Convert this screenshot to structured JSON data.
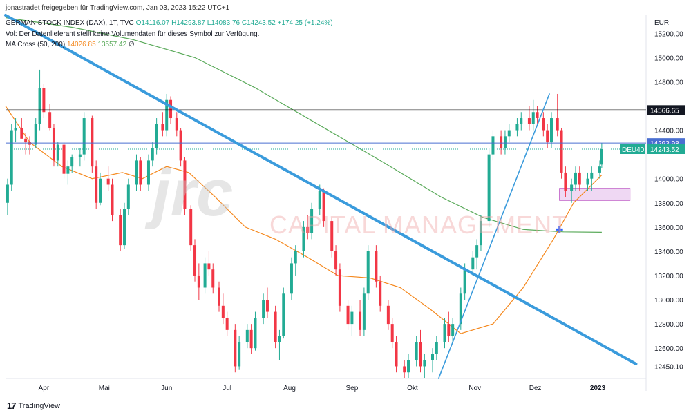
{
  "header": {
    "attribution": "jonastradet freigegeben für TradingView.com, Jan 03, 2023 15:22 UTC+1",
    "symbol": "GERMAN STOCK INDEX (DAX), 1T, TVC",
    "ohlc": "O14116.07  H14293.87  L14083.76  C14243.52  +174.25 (+1.24%)",
    "volume_note": "Vol: Der Datenlieferant stellt keine Volumendaten für dieses Symbol zur Verfügung.",
    "ma_label": "MA Cross (50, 200)",
    "ma50_value": "14026.85",
    "ma200_value": "13557.42",
    "ma_suffix": "∅"
  },
  "footer": {
    "brand": "TradingView",
    "logo": "17"
  },
  "watermark": {
    "brand": "jrc",
    "text": "CAPITAL MANAGEMENT"
  },
  "colors": {
    "up": "#22ab94",
    "down": "#f23645",
    "ma50": "#f5891f",
    "ma200": "#5aaa5a",
    "trend": "#3a9bdc",
    "resistance": "#000000",
    "price_line": "#4a6fd1",
    "zone_fill": "#e8c8ee",
    "zone_stroke": "#c060c8"
  },
  "chart_data": {
    "type": "candlestick",
    "currency": "EUR",
    "y_axis_ticks": [
      15200,
      15000,
      14800,
      14400,
      14000,
      13800,
      13600,
      13400,
      13200,
      13000,
      12800,
      12600,
      12450.1
    ],
    "y_tick_labels": [
      "15200.00",
      "15000.00",
      "14800.00",
      "14400.00",
      "14000.00",
      "13800.00",
      "13600.00",
      "13400.00",
      "13200.00",
      "13000.00",
      "12800.00",
      "12600.00",
      "12450.10"
    ],
    "ylim": [
      12350,
      15350
    ],
    "x_month_labels": [
      "Apr",
      "Mai",
      "Jun",
      "Jul",
      "Aug",
      "Sep",
      "Okt",
      "Nov",
      "Dez",
      "2023"
    ],
    "xlim": [
      "2022-03-13",
      "2023-01-25"
    ],
    "month_ticks": [
      "2022-04-01",
      "2022-05-01",
      "2022-06-01",
      "2022-07-01",
      "2022-08-01",
      "2022-09-01",
      "2022-10-01",
      "2022-11-01",
      "2022-12-01",
      "2023-01-01"
    ],
    "price_labels": [
      {
        "label": "14566.65",
        "value": 14566.65,
        "style": "dark"
      },
      {
        "label": "14293.98",
        "value": 14293.98,
        "style": "blue"
      },
      {
        "label": "14243.52",
        "value": 14243.52,
        "style": "green",
        "tag": "DEU40"
      }
    ],
    "resistance_level": 14566.65,
    "price_line_level": 14293.98,
    "close_level": 14243.52,
    "support_zone": {
      "x0": "2022-12-13",
      "x1": "2023-01-17",
      "y0": 13820,
      "y1": 13920
    },
    "trendlines": [
      {
        "name": "downtrend",
        "points": [
          [
            "2022-03-13",
            15350
          ],
          [
            "2023-01-20",
            12470
          ]
        ]
      },
      {
        "name": "uptrend",
        "points": [
          [
            "2022-10-14",
            12350
          ],
          [
            "2022-12-08",
            14700
          ]
        ]
      }
    ],
    "golden_cross_marker": {
      "date": "2022-12-13",
      "value": 13580
    },
    "ma50": [
      [
        "2022-03-13",
        14600
      ],
      [
        "2022-03-25",
        14300
      ],
      [
        "2022-04-10",
        14100
      ],
      [
        "2022-04-25",
        14000
      ],
      [
        "2022-05-10",
        14050
      ],
      [
        "2022-05-20",
        14000
      ],
      [
        "2022-06-01",
        14100
      ],
      [
        "2022-06-12",
        14050
      ],
      [
        "2022-06-25",
        13850
      ],
      [
        "2022-07-10",
        13600
      ],
      [
        "2022-07-25",
        13500
      ],
      [
        "2022-08-10",
        13350
      ],
      [
        "2022-08-25",
        13200
      ],
      [
        "2022-09-10",
        13180
      ],
      [
        "2022-09-25",
        13100
      ],
      [
        "2022-10-10",
        12920
      ],
      [
        "2022-10-25",
        12720
      ],
      [
        "2022-11-10",
        12800
      ],
      [
        "2022-11-25",
        13100
      ],
      [
        "2022-12-10",
        13500
      ],
      [
        "2022-12-20",
        13800
      ],
      [
        "2023-01-03",
        14030
      ]
    ],
    "ma200": [
      [
        "2022-03-13",
        15330
      ],
      [
        "2022-04-15",
        15250
      ],
      [
        "2022-05-15",
        15150
      ],
      [
        "2022-06-15",
        15000
      ],
      [
        "2022-07-15",
        14750
      ],
      [
        "2022-08-15",
        14450
      ],
      [
        "2022-09-15",
        14150
      ],
      [
        "2022-10-15",
        13850
      ],
      [
        "2022-11-05",
        13680
      ],
      [
        "2022-11-25",
        13580
      ],
      [
        "2022-12-15",
        13560
      ],
      [
        "2023-01-03",
        13557
      ]
    ],
    "candles": [
      [
        "2022-03-14",
        13800,
        14000,
        13700,
        13950
      ],
      [
        "2022-03-16",
        13950,
        14450,
        13900,
        14400
      ],
      [
        "2022-03-18",
        14400,
        14500,
        14300,
        14420
      ],
      [
        "2022-03-21",
        14420,
        14500,
        14350,
        14330
      ],
      [
        "2022-03-23",
        14330,
        14380,
        14200,
        14300
      ],
      [
        "2022-03-25",
        14300,
        14350,
        14200,
        14280
      ],
      [
        "2022-03-28",
        14280,
        14500,
        14250,
        14450
      ],
      [
        "2022-03-30",
        14450,
        14900,
        14400,
        14750
      ],
      [
        "2022-04-01",
        14750,
        14780,
        14500,
        14550
      ],
      [
        "2022-04-04",
        14550,
        14620,
        14400,
        14420
      ],
      [
        "2022-04-06",
        14420,
        14450,
        14100,
        14150
      ],
      [
        "2022-04-08",
        14150,
        14300,
        14100,
        14280
      ],
      [
        "2022-04-11",
        14280,
        14300,
        14000,
        14040
      ],
      [
        "2022-04-13",
        14040,
        14150,
        13950,
        14100
      ],
      [
        "2022-04-15",
        14100,
        14200,
        14050,
        14180
      ],
      [
        "2022-04-19",
        14180,
        14250,
        14100,
        14200
      ],
      [
        "2022-04-21",
        14200,
        14550,
        14150,
        14500
      ],
      [
        "2022-04-25",
        14500,
        14520,
        14050,
        14100
      ],
      [
        "2022-04-27",
        14100,
        14150,
        13750,
        13800
      ],
      [
        "2022-04-29",
        13800,
        14050,
        13780,
        14000
      ],
      [
        "2022-05-03",
        14000,
        14100,
        13900,
        13950
      ],
      [
        "2022-05-05",
        13950,
        14000,
        13650,
        13700
      ],
      [
        "2022-05-09",
        13700,
        13750,
        13400,
        13450
      ],
      [
        "2022-05-11",
        13450,
        13800,
        13420,
        13750
      ],
      [
        "2022-05-13",
        13750,
        14000,
        13700,
        13950
      ],
      [
        "2022-05-17",
        13950,
        14200,
        13900,
        14150
      ],
      [
        "2022-05-19",
        14150,
        14180,
        13900,
        13950
      ],
      [
        "2022-05-23",
        13950,
        14200,
        13900,
        14150
      ],
      [
        "2022-05-25",
        14150,
        14300,
        14100,
        14250
      ],
      [
        "2022-05-27",
        14250,
        14500,
        14200,
        14450
      ],
      [
        "2022-05-30",
        14450,
        14550,
        14350,
        14400
      ],
      [
        "2022-06-01",
        14400,
        14700,
        14350,
        14650
      ],
      [
        "2022-06-03",
        14650,
        14680,
        14450,
        14500
      ],
      [
        "2022-06-06",
        14500,
        14550,
        14350,
        14400
      ],
      [
        "2022-06-08",
        14400,
        14420,
        14100,
        14150
      ],
      [
        "2022-06-10",
        14150,
        14180,
        13700,
        13750
      ],
      [
        "2022-06-13",
        13750,
        13780,
        13400,
        13450
      ],
      [
        "2022-06-15",
        13450,
        13500,
        13150,
        13200
      ],
      [
        "2022-06-17",
        13200,
        13300,
        13000,
        13100
      ],
      [
        "2022-06-20",
        13100,
        13350,
        13050,
        13300
      ],
      [
        "2022-06-22",
        13300,
        13400,
        13200,
        13250
      ],
      [
        "2022-06-24",
        13250,
        13300,
        13050,
        13100
      ],
      [
        "2022-06-27",
        13100,
        13150,
        12900,
        12950
      ],
      [
        "2022-06-29",
        12950,
        13050,
        12800,
        12850
      ],
      [
        "2022-07-01",
        12850,
        12900,
        12700,
        12750
      ],
      [
        "2022-07-05",
        12750,
        12800,
        12400,
        12450
      ],
      [
        "2022-07-07",
        12450,
        12700,
        12420,
        12650
      ],
      [
        "2022-07-11",
        12650,
        12800,
        12600,
        12750
      ],
      [
        "2022-07-13",
        12750,
        12800,
        12550,
        12600
      ],
      [
        "2022-07-15",
        12600,
        12900,
        12580,
        12850
      ],
      [
        "2022-07-19",
        12850,
        13050,
        12800,
        13000
      ],
      [
        "2022-07-21",
        13000,
        13100,
        12850,
        12900
      ],
      [
        "2022-07-25",
        12900,
        12950,
        12600,
        12650
      ],
      [
        "2022-07-27",
        12650,
        12750,
        12500,
        12700
      ],
      [
        "2022-07-29",
        12700,
        13100,
        12680,
        13050
      ],
      [
        "2022-08-02",
        13050,
        13350,
        13000,
        13300
      ],
      [
        "2022-08-04",
        13300,
        13450,
        13200,
        13400
      ],
      [
        "2022-08-08",
        13400,
        13650,
        13350,
        13600
      ],
      [
        "2022-08-10",
        13600,
        13700,
        13500,
        13550
      ],
      [
        "2022-08-12",
        13550,
        13800,
        13500,
        13750
      ],
      [
        "2022-08-16",
        13750,
        13950,
        13700,
        13900
      ],
      [
        "2022-08-18",
        13900,
        13920,
        13600,
        13650
      ],
      [
        "2022-08-22",
        13650,
        13680,
        13350,
        13400
      ],
      [
        "2022-08-24",
        13400,
        13450,
        13200,
        13250
      ],
      [
        "2022-08-26",
        13250,
        13300,
        12900,
        12950
      ],
      [
        "2022-08-30",
        12950,
        13000,
        12750,
        12800
      ],
      [
        "2022-09-01",
        12800,
        12950,
        12700,
        12900
      ],
      [
        "2022-09-05",
        12900,
        13000,
        12700,
        12750
      ],
      [
        "2022-09-07",
        12750,
        13100,
        12700,
        13050
      ],
      [
        "2022-09-09",
        13050,
        13450,
        13000,
        13400
      ],
      [
        "2022-09-13",
        13400,
        13450,
        13100,
        13150
      ],
      [
        "2022-09-15",
        13150,
        13200,
        12900,
        12950
      ],
      [
        "2022-09-19",
        12950,
        13000,
        12750,
        12800
      ],
      [
        "2022-09-21",
        12800,
        12850,
        12600,
        12650
      ],
      [
        "2022-09-23",
        12650,
        12700,
        12400,
        12450
      ],
      [
        "2022-09-27",
        12450,
        12500,
        12350,
        12400
      ],
      [
        "2022-09-29",
        12400,
        12550,
        12350,
        12500
      ],
      [
        "2022-10-03",
        12500,
        12700,
        12450,
        12650
      ],
      [
        "2022-10-05",
        12650,
        12750,
        12400,
        12450
      ],
      [
        "2022-10-07",
        12450,
        12550,
        12350,
        12500
      ],
      [
        "2022-10-11",
        12500,
        12600,
        12400,
        12550
      ],
      [
        "2022-10-13",
        12550,
        12700,
        12500,
        12650
      ],
      [
        "2022-10-17",
        12650,
        12850,
        12600,
        12800
      ],
      [
        "2022-10-19",
        12800,
        12900,
        12650,
        12700
      ],
      [
        "2022-10-21",
        12700,
        12850,
        12650,
        12800
      ],
      [
        "2022-10-25",
        12800,
        13100,
        12750,
        13050
      ],
      [
        "2022-10-27",
        13050,
        13300,
        13000,
        13250
      ],
      [
        "2022-10-31",
        13250,
        13400,
        13200,
        13350
      ],
      [
        "2022-11-02",
        13350,
        13500,
        13250,
        13450
      ],
      [
        "2022-11-04",
        13450,
        13700,
        13400,
        13650
      ],
      [
        "2022-11-08",
        13650,
        14250,
        13600,
        14200
      ],
      [
        "2022-11-10",
        14200,
        14400,
        14150,
        14350
      ],
      [
        "2022-11-14",
        14350,
        14400,
        14200,
        14250
      ],
      [
        "2022-11-16",
        14250,
        14400,
        14200,
        14350
      ],
      [
        "2022-11-18",
        14350,
        14450,
        14300,
        14400
      ],
      [
        "2022-11-22",
        14400,
        14500,
        14350,
        14450
      ],
      [
        "2022-11-24",
        14450,
        14550,
        14400,
        14500
      ],
      [
        "2022-11-28",
        14500,
        14600,
        14400,
        14450
      ],
      [
        "2022-11-30",
        14450,
        14650,
        14400,
        14550
      ],
      [
        "2022-12-02",
        14550,
        14600,
        14450,
        14500
      ],
      [
        "2022-12-05",
        14500,
        14550,
        14350,
        14400
      ],
      [
        "2022-12-07",
        14400,
        14450,
        14250,
        14300
      ],
      [
        "2022-12-09",
        14300,
        14550,
        14250,
        14500
      ],
      [
        "2022-12-12",
        14500,
        14700,
        14350,
        14400
      ],
      [
        "2022-12-14",
        14400,
        14420,
        14000,
        14050
      ],
      [
        "2022-12-16",
        14050,
        14100,
        13850,
        13900
      ],
      [
        "2022-12-19",
        13900,
        14000,
        13800,
        13950
      ],
      [
        "2022-12-21",
        13950,
        14100,
        13900,
        14050
      ],
      [
        "2022-12-23",
        14050,
        14100,
        13900,
        13950
      ],
      [
        "2022-12-27",
        13950,
        14050,
        13900,
        14000
      ],
      [
        "2022-12-29",
        14000,
        14100,
        13900,
        14050
      ],
      [
        "2023-01-02",
        14050,
        14150,
        14000,
        14100
      ],
      [
        "2023-01-03",
        14116.07,
        14293.87,
        14083.76,
        14243.52
      ]
    ]
  }
}
